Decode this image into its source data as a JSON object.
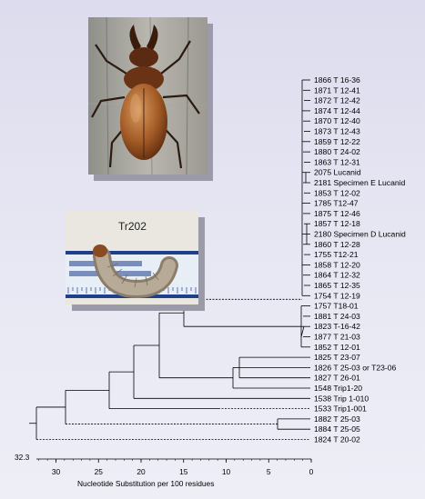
{
  "tree": {
    "root_label": "32.3",
    "axis": {
      "label": "Nucleotide Substitution per 100 residues",
      "ticks": [
        "30",
        "25",
        "20",
        "15",
        "10",
        "5",
        "0"
      ],
      "range": [
        32.3,
        0
      ]
    },
    "leaves": [
      "1866 T 16-36",
      "1871 T 12-41",
      "1872 T 12-42",
      "1874 T 12-44",
      "1870 T 12-40",
      "1873 T 12-43",
      "1859 T 12-22",
      "1880 T 24-02",
      "1863 T 12-31",
      "2075 Lucanid",
      "2181 Specimen E Lucanid",
      "1853 T 12-02",
      "1785 T12-47",
      "1875 T 12-46",
      "1857 T 12-18",
      "2180 Specimen D Lucanid",
      "1860 T 12-28",
      "1755 T12-21",
      "1858 T 12-20",
      "1864 T 12-32",
      "1865 T 12-35",
      "1754 T 12-19",
      "1757 T18-01",
      "1881 T 24-03",
      "1823 T-16-42",
      "1877 T 21-03",
      "1852 T 12-01",
      "1825 T 23-07",
      "1826 T 25-03 or T23-06",
      "1827 T 26-01",
      "1548 Trip1-20",
      "1538 Trip 1-010",
      "1533 Trip1-001",
      "1882 T 25-03",
      "1884 T 25-05",
      "1824 T 20-02"
    ]
  },
  "photos": {
    "beetle": {
      "icon": "stag-beetle-photo"
    },
    "larva": {
      "icon": "beetle-larva-photo",
      "label": "Tr202"
    }
  },
  "colors": {
    "line": "#000000",
    "background": "#e6e6f2"
  }
}
